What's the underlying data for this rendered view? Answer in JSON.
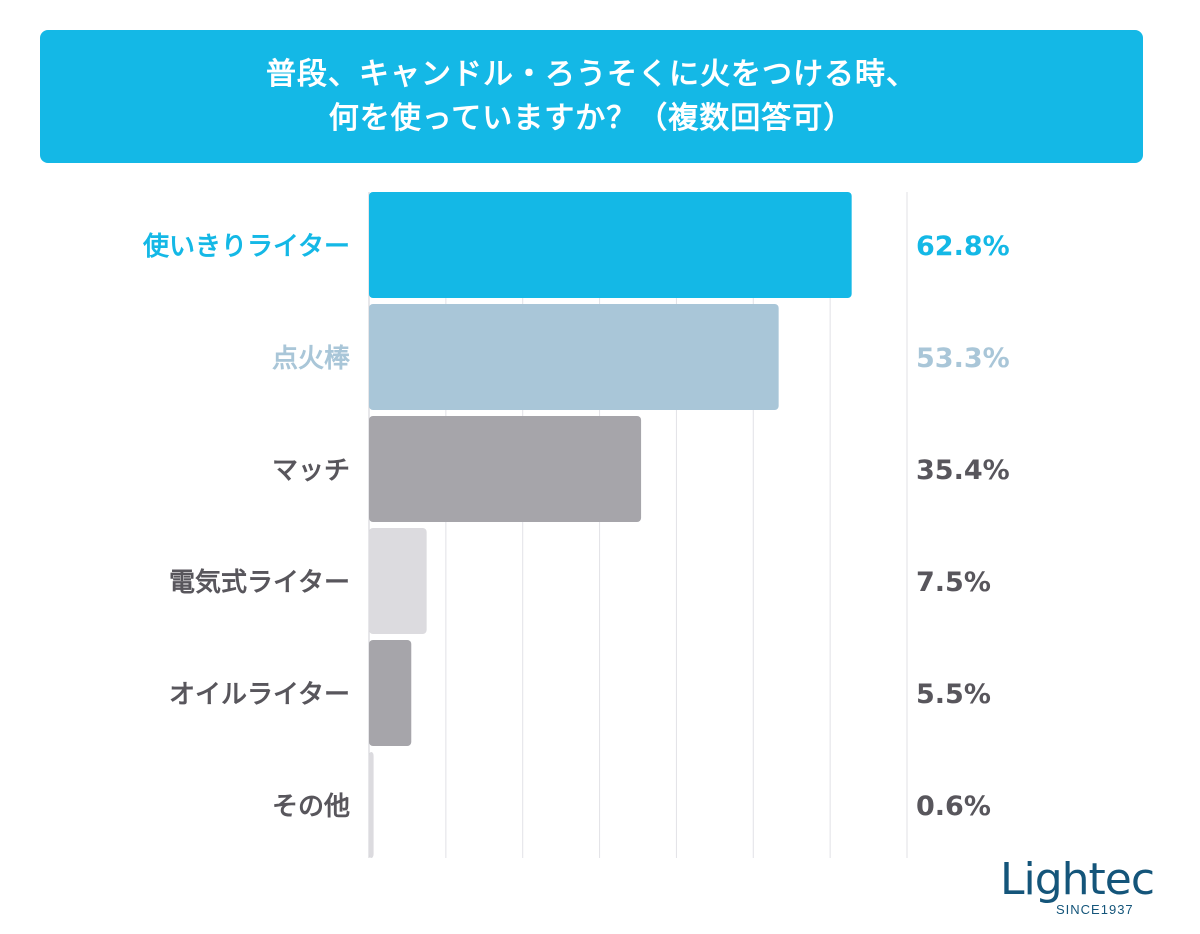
{
  "title": {
    "line1": "普段、キャンドル・ろうそくに火をつける時、",
    "line2": "何を使っていますか？（複数回答可）"
  },
  "colors": {
    "title_bg": "#14b8e6",
    "gridline": "#e2e2e6",
    "axis": "#cfcfd4"
  },
  "chart_data": {
    "type": "bar",
    "orientation": "horizontal",
    "categories": [
      "使いきりライター",
      "点火棒",
      "マッチ",
      "電気式ライター",
      "オイルライター",
      "その他"
    ],
    "values": [
      62.8,
      53.3,
      35.4,
      7.5,
      5.5,
      0.6
    ],
    "value_labels": [
      "62.8%",
      "53.3%",
      "35.4%",
      "7.5%",
      "5.5%",
      "0.6%"
    ],
    "bar_colors": [
      "#14b8e6",
      "#a9c6d8",
      "#a6a5aa",
      "#dcdbdf",
      "#a6a5aa",
      "#dcdbdf"
    ],
    "label_colors": [
      "#14b8e6",
      "#a9c6d8",
      "#58565c",
      "#58565c",
      "#58565c",
      "#58565c"
    ],
    "xlim": [
      0,
      70
    ],
    "grid": true,
    "unit": "%"
  },
  "logo": {
    "name": "Lightec",
    "tagline": "SINCE1937"
  }
}
